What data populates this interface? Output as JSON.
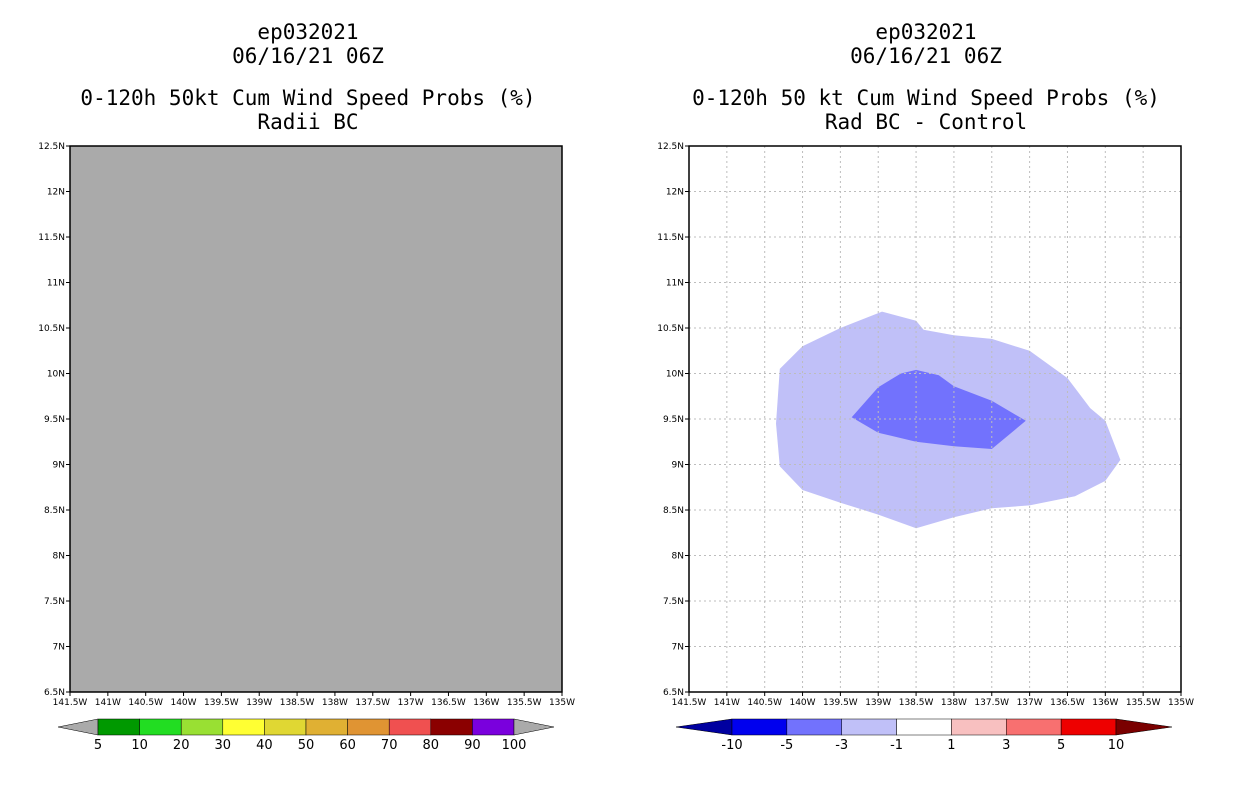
{
  "chart_data": [
    {
      "type": "heatmap",
      "title_lines": [
        "ep032021",
        "06/16/21 06Z",
        "0-120h 50kt Cum Wind Speed Probs (%)",
        "Radii BC"
      ],
      "x_ticks": [
        "141.5W",
        "141W",
        "140.5W",
        "140W",
        "139.5W",
        "139W",
        "138.5W",
        "138W",
        "137.5W",
        "137W",
        "136.5W",
        "136W",
        "135.5W",
        "135W"
      ],
      "y_ticks": [
        "6.5N",
        "7N",
        "7.5N",
        "8N",
        "8.5N",
        "9N",
        "9.5N",
        "10N",
        "10.5N",
        "11N",
        "11.5N",
        "12N",
        "12.5N"
      ],
      "xlim": [
        -141.5,
        -135.0
      ],
      "ylim": [
        6.5,
        12.5
      ],
      "field": "uniform gray (no data)",
      "colorbar": {
        "labels": [
          "5",
          "10",
          "20",
          "30",
          "40",
          "50",
          "60",
          "70",
          "80",
          "90",
          "100"
        ],
        "colors": [
          "#009900",
          "#22dd22",
          "#99e033",
          "#ffff33",
          "#e0d733",
          "#e0b033",
          "#e09433",
          "#f05050",
          "#8b0000",
          "#7a00dd"
        ]
      }
    },
    {
      "type": "heatmap",
      "title_lines": [
        "ep032021",
        "06/16/21 06Z",
        "0-120h 50 kt Cum Wind Speed Probs (%)",
        "Rad BC - Control"
      ],
      "x_ticks": [
        "141.5W",
        "141W",
        "140.5W",
        "140W",
        "139.5W",
        "139W",
        "138.5W",
        "138W",
        "137.5W",
        "137W",
        "136.5W",
        "136W",
        "135.5W",
        "135W"
      ],
      "y_ticks": [
        "6.5N",
        "7N",
        "7.5N",
        "8N",
        "8.5N",
        "9N",
        "9.5N",
        "10N",
        "10.5N",
        "11N",
        "11.5N",
        "12N",
        "12.5N"
      ],
      "xlim": [
        -141.5,
        -135.0
      ],
      "ylim": [
        6.5,
        12.5
      ],
      "contours": [
        {
          "level": "-3 to -1",
          "color": "#c0c0f8",
          "points": [
            [
              -138.95,
              10.68
            ],
            [
              -138.5,
              10.58
            ],
            [
              -138.4,
              10.48
            ],
            [
              -138.0,
              10.42
            ],
            [
              -137.5,
              10.38
            ],
            [
              -137.0,
              10.25
            ],
            [
              -136.5,
              9.95
            ],
            [
              -136.2,
              9.62
            ],
            [
              -136.0,
              9.48
            ],
            [
              -135.8,
              9.05
            ],
            [
              -136.0,
              8.82
            ],
            [
              -136.4,
              8.65
            ],
            [
              -137.0,
              8.55
            ],
            [
              -137.5,
              8.52
            ],
            [
              -138.0,
              8.42
            ],
            [
              -138.5,
              8.3
            ],
            [
              -139.0,
              8.45
            ],
            [
              -139.5,
              8.58
            ],
            [
              -140.0,
              8.72
            ],
            [
              -140.3,
              8.98
            ],
            [
              -140.35,
              9.45
            ],
            [
              -140.3,
              10.05
            ],
            [
              -140.0,
              10.3
            ],
            [
              -139.5,
              10.5
            ]
          ]
        },
        {
          "level": "-5 to -3",
          "color": "#7272fd",
          "points": [
            [
              -139.35,
              9.52
            ],
            [
              -139.0,
              9.85
            ],
            [
              -138.7,
              10.0
            ],
            [
              -138.5,
              10.04
            ],
            [
              -138.2,
              9.98
            ],
            [
              -138.0,
              9.86
            ],
            [
              -137.5,
              9.7
            ],
            [
              -137.05,
              9.48
            ],
            [
              -137.5,
              9.17
            ],
            [
              -138.0,
              9.2
            ],
            [
              -138.5,
              9.25
            ],
            [
              -139.0,
              9.35
            ]
          ]
        }
      ],
      "colorbar": {
        "labels": [
          "-10",
          "-5",
          "-3",
          "-1",
          "1",
          "3",
          "5",
          "10"
        ],
        "colors": [
          "#0000a0",
          "#0000ee",
          "#7272fd",
          "#c0c0f8",
          "#ffffff",
          "#f8c0c0",
          "#f87070",
          "#ee0000",
          "#7a0000"
        ]
      }
    }
  ]
}
